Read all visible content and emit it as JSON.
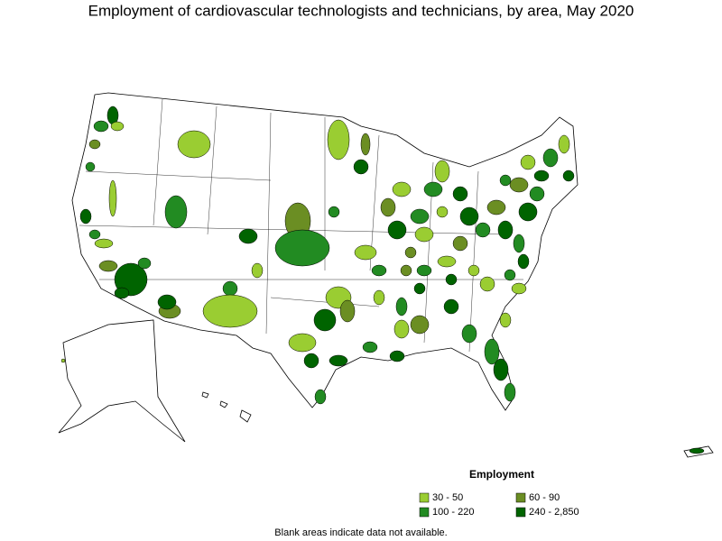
{
  "title": "Employment of cardiovascular technologists and technicians, by area, May 2020",
  "legend": {
    "title": "Employment",
    "items": [
      {
        "label": "30 - 50",
        "color": "#9acd32"
      },
      {
        "label": "60 - 90",
        "color": "#6b8e23"
      },
      {
        "label": "100 - 220",
        "color": "#228b22"
      },
      {
        "label": "240 - 2,850",
        "color": "#006400"
      }
    ]
  },
  "footnote": "Blank areas indicate data not available."
}
